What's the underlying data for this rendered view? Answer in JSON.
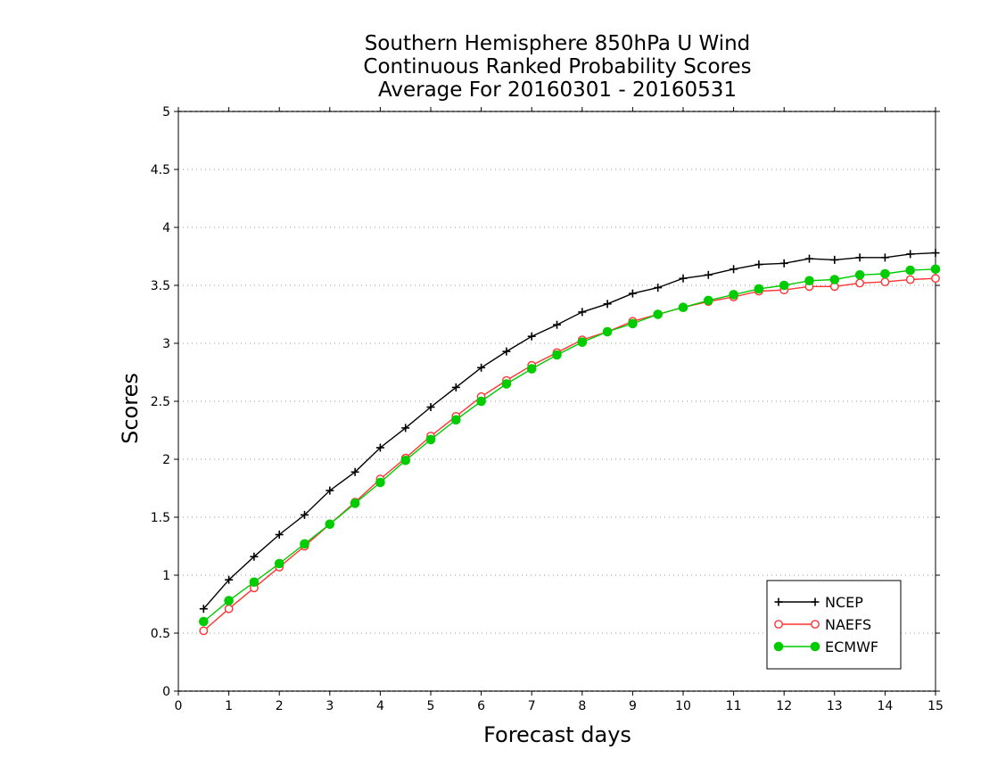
{
  "chart_data": {
    "type": "line",
    "title": [
      "Southern Hemisphere 850hPa U Wind",
      "Continuous Ranked Probability Scores",
      "Average For 20160301 - 20160531"
    ],
    "xlabel": "Forecast days",
    "ylabel": "Scores",
    "xlim": [
      0,
      15
    ],
    "ylim": [
      0,
      5
    ],
    "x_ticks": [
      "0",
      "1",
      "2",
      "3",
      "4",
      "5",
      "6",
      "7",
      "8",
      "9",
      "10",
      "11",
      "12",
      "13",
      "14",
      "15"
    ],
    "y_ticks": [
      "0",
      "0.5",
      "1",
      "1.5",
      "2",
      "2.5",
      "3",
      "3.5",
      "4",
      "4.5",
      "5"
    ],
    "grid": true,
    "legend_position": "bottom-right",
    "x": [
      0.5,
      1,
      1.5,
      2,
      2.5,
      3,
      3.5,
      4,
      4.5,
      5,
      5.5,
      6,
      6.5,
      7,
      7.5,
      8,
      8.5,
      9,
      9.5,
      10,
      10.5,
      11,
      11.5,
      12,
      12.5,
      13,
      13.5,
      14,
      14.5,
      15
    ],
    "series": [
      {
        "name": "NCEP",
        "color": "#000000",
        "marker": "plus",
        "values": [
          0.71,
          0.96,
          1.16,
          1.35,
          1.52,
          1.73,
          1.89,
          2.1,
          2.27,
          2.45,
          2.62,
          2.79,
          2.93,
          3.06,
          3.16,
          3.27,
          3.34,
          3.43,
          3.48,
          3.56,
          3.59,
          3.64,
          3.68,
          3.69,
          3.73,
          3.72,
          3.74,
          3.74,
          3.77,
          3.78
        ]
      },
      {
        "name": "NAEFS",
        "color": "#ff3333",
        "marker": "open-circle",
        "values": [
          0.52,
          0.71,
          0.89,
          1.07,
          1.25,
          1.44,
          1.63,
          1.83,
          2.01,
          2.2,
          2.37,
          2.54,
          2.68,
          2.81,
          2.92,
          3.03,
          3.1,
          3.19,
          3.25,
          3.31,
          3.36,
          3.4,
          3.45,
          3.46,
          3.49,
          3.49,
          3.52,
          3.53,
          3.55,
          3.56
        ]
      },
      {
        "name": "ECMWF",
        "color": "#00cc00",
        "marker": "filled-circle",
        "values": [
          0.6,
          0.78,
          0.94,
          1.1,
          1.27,
          1.44,
          1.62,
          1.8,
          1.99,
          2.17,
          2.34,
          2.5,
          2.65,
          2.78,
          2.9,
          3.01,
          3.1,
          3.17,
          3.25,
          3.31,
          3.37,
          3.42,
          3.47,
          3.5,
          3.54,
          3.55,
          3.59,
          3.6,
          3.63,
          3.64
        ]
      }
    ]
  }
}
